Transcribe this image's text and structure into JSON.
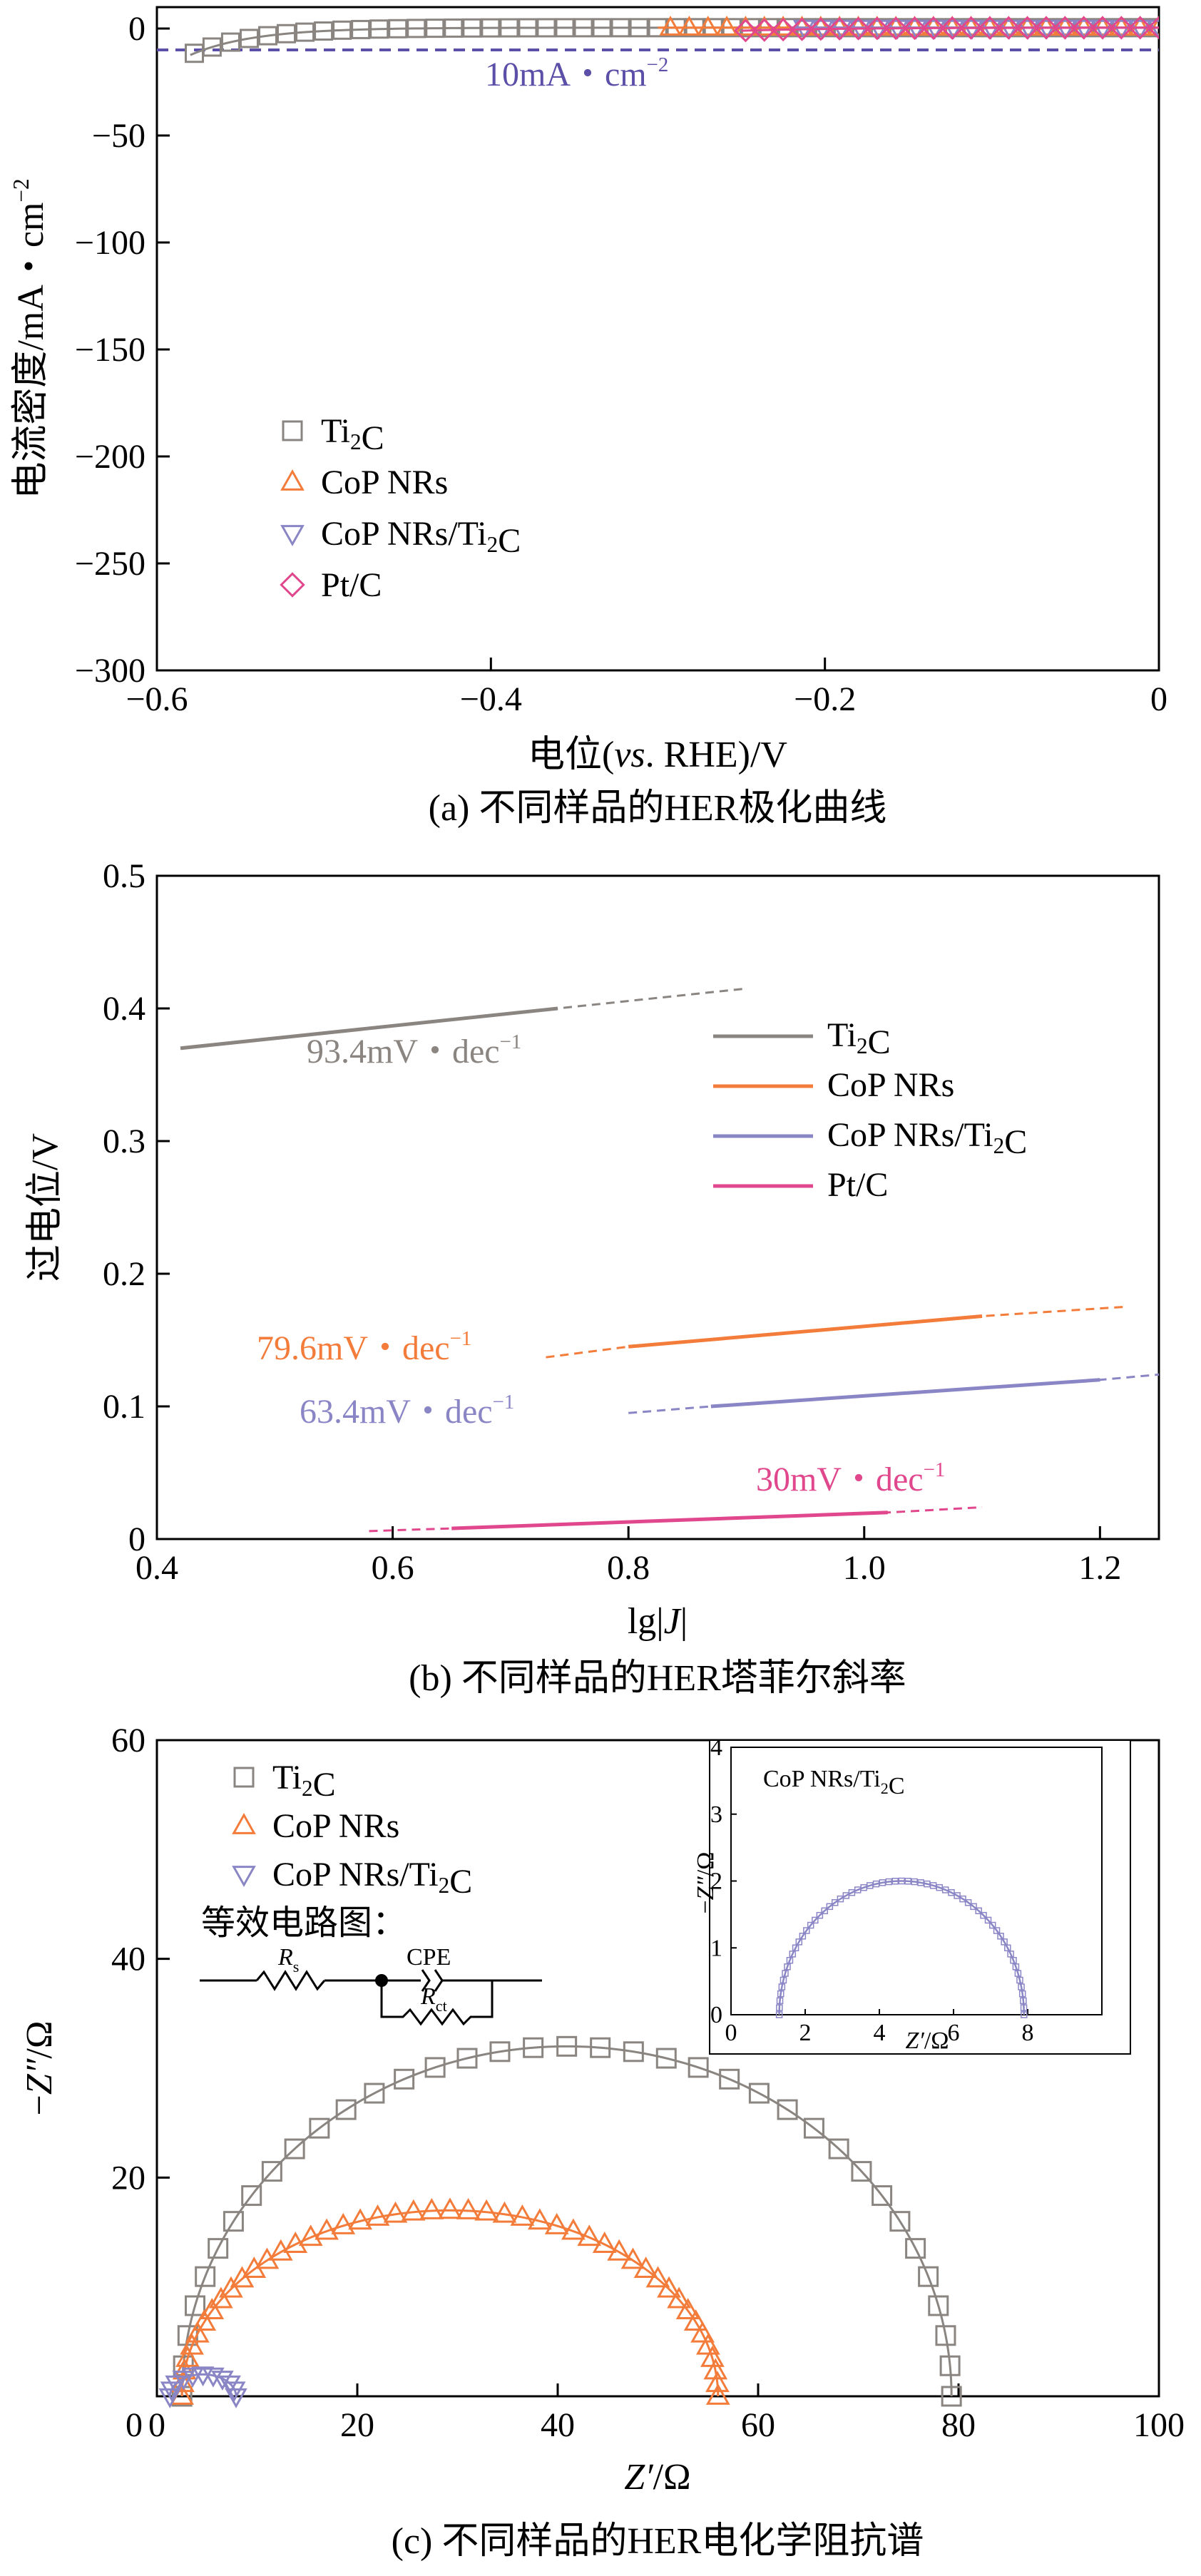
{
  "colors": {
    "ti2c": "#8a8580",
    "cop": "#f47c3a",
    "copti": "#8a86c6",
    "ptc": "#e0478d",
    "ref_line": "#5b4fa8",
    "axis": "#000000"
  },
  "series_labels": {
    "ti2c": {
      "base": "Ti",
      "sub": "2",
      "tail": "C"
    },
    "cop": {
      "base": "CoP NRs",
      "sub": "",
      "tail": ""
    },
    "copti": {
      "base": "CoP NRs/Ti",
      "sub": "2",
      "tail": "C"
    },
    "ptc": {
      "base": "Pt/C",
      "sub": "",
      "tail": ""
    }
  },
  "chart_data": [
    {
      "id": "a",
      "type": "line",
      "caption": "(a) 不同样品的HER极化曲线",
      "ylabel": {
        "base": "电流密度/mA・cm",
        "sup": "−2"
      },
      "xlabel": {
        "base": "电位(",
        "italic": "vs",
        "tail": ". RHE)/V"
      },
      "xlim": [
        -0.6,
        0
      ],
      "ylim": [
        -300,
        10
      ],
      "x_ticks": [
        -0.6,
        -0.4,
        -0.2,
        0
      ],
      "x_tick_labels": [
        "−0.6",
        "−0.4",
        "−0.2",
        "0"
      ],
      "y_ticks": [
        0,
        -50,
        -100,
        -150,
        -200,
        -250,
        -300
      ],
      "y_tick_labels": [
        "0",
        "−50",
        "−100",
        "−150",
        "−200",
        "−250",
        "−300"
      ],
      "reference_line": {
        "y": -10,
        "label": {
          "base": "10mA・cm",
          "sup": "−2"
        }
      },
      "legend_position": "lower-left",
      "series": [
        {
          "key": "ti2c",
          "marker": "square",
          "onset": -0.42,
          "scale": 0.038,
          "j0": 3e-06,
          "x_end": -0.58
        },
        {
          "key": "cop",
          "marker": "triangle-up",
          "onset": -0.12,
          "scale": 0.034,
          "j0": 1.3e-07,
          "x_end": -0.3
        },
        {
          "key": "copti",
          "marker": "triangle-down",
          "onset": -0.06,
          "scale": 0.032,
          "j0": 3.2e-06,
          "x_end": -0.22
        },
        {
          "key": "ptc",
          "marker": "diamond",
          "onset": -0.01,
          "scale": 0.06,
          "j0": 0.022,
          "x_end": -0.25
        }
      ]
    },
    {
      "id": "b",
      "type": "line",
      "caption": "(b) 不同样品的HER塔菲尔斜率",
      "ylabel": "过电位/V",
      "xlabel": {
        "base": "lg|",
        "italic": "J",
        "tail": "|"
      },
      "xlim": [
        0.4,
        1.25
      ],
      "ylim": [
        0,
        0.5
      ],
      "x_ticks": [
        0.4,
        0.6,
        0.8,
        1.0,
        1.2
      ],
      "x_tick_labels": [
        "0.4",
        "0.6",
        "0.8",
        "1.0",
        "1.2"
      ],
      "y_ticks": [
        0,
        0.1,
        0.2,
        0.3,
        0.4,
        0.5
      ],
      "y_tick_labels": [
        "0",
        "0.1",
        "0.2",
        "0.3",
        "0.4",
        "0.5"
      ],
      "legend_position": "right",
      "series": [
        {
          "key": "ti2c",
          "slope_label": "93.4mV・dec",
          "x": [
            0.42,
            0.74,
            0.9
          ],
          "y": [
            0.37,
            0.4,
            0.415
          ],
          "solid_x": [
            0.42,
            0.74
          ]
        },
        {
          "key": "cop",
          "slope_label": "79.6mV・dec",
          "x": [
            0.73,
            0.8,
            1.1,
            1.22
          ],
          "y": [
            0.137,
            0.145,
            0.168,
            0.175
          ],
          "solid_x": [
            0.8,
            1.1
          ]
        },
        {
          "key": "copti",
          "slope_label": "63.4mV・dec",
          "x": [
            0.8,
            0.87,
            1.2,
            1.25
          ],
          "y": [
            0.095,
            0.1,
            0.12,
            0.124
          ],
          "solid_x": [
            0.87,
            1.2
          ]
        },
        {
          "key": "ptc",
          "slope_label": "30mV・dec",
          "x": [
            0.58,
            0.65,
            1.02,
            1.1
          ],
          "y": [
            0.006,
            0.008,
            0.02,
            0.024
          ],
          "solid_x": [
            0.65,
            1.02
          ]
        }
      ],
      "slope_label_sup": "−1"
    },
    {
      "id": "c",
      "type": "scatter",
      "caption": "(c) 不同样品的HER电化学阻抗谱",
      "ylabel": {
        "base": "−",
        "italic": "Z″",
        "tail": "/Ω"
      },
      "xlabel": {
        "base": "",
        "italic": "Z′",
        "tail": "/Ω"
      },
      "xlim": [
        0,
        100
      ],
      "ylim": [
        0,
        60
      ],
      "x_ticks": [
        0,
        20,
        40,
        60,
        80,
        100
      ],
      "x_tick_labels": [
        "0",
        "20",
        "40",
        "60",
        "80",
        "100"
      ],
      "y_ticks": [
        20,
        40,
        60
      ],
      "y_tick_labels": [
        "20",
        "40",
        "60"
      ],
      "legend_position": "top-left",
      "series": [
        {
          "key": "ti2c",
          "marker": "square",
          "rs": 2.5,
          "rct": 76.8,
          "height": 32
        },
        {
          "key": "cop",
          "marker": "triangle-up",
          "rs": 2.5,
          "rct": 53.5,
          "height": 17
        },
        {
          "key": "copti",
          "marker": "triangle-down",
          "rs": 1.3,
          "rct": 6.6,
          "height": 2.0
        }
      ],
      "circuit": {
        "title": "等效电路图：",
        "rs_label": {
          "italic": "R",
          "sub": "s"
        },
        "cpe_label": "CPE",
        "rct_label": {
          "italic": "R",
          "sub": "ct"
        }
      },
      "inset": {
        "title": {
          "base": "CoP NRs/Ti",
          "sub": "2",
          "tail": "C"
        },
        "xlim": [
          0,
          10
        ],
        "ylim": [
          0,
          4
        ],
        "x_ticks": [
          0,
          2,
          4,
          6,
          8
        ],
        "x_tick_labels": [
          "0",
          "2",
          "4",
          "6",
          "8"
        ],
        "y_ticks": [
          0,
          1,
          2,
          3,
          4
        ],
        "y_tick_labels": [
          "0",
          "1",
          "2",
          "3",
          "4"
        ],
        "xlabel": {
          "italic": "Z′",
          "tail": "/Ω"
        },
        "ylabel": {
          "base": "−",
          "italic": "Z″",
          "tail": "/Ω"
        },
        "series_key": "copti",
        "rs": 1.3,
        "rct": 6.6,
        "height": 2.0
      }
    }
  ]
}
